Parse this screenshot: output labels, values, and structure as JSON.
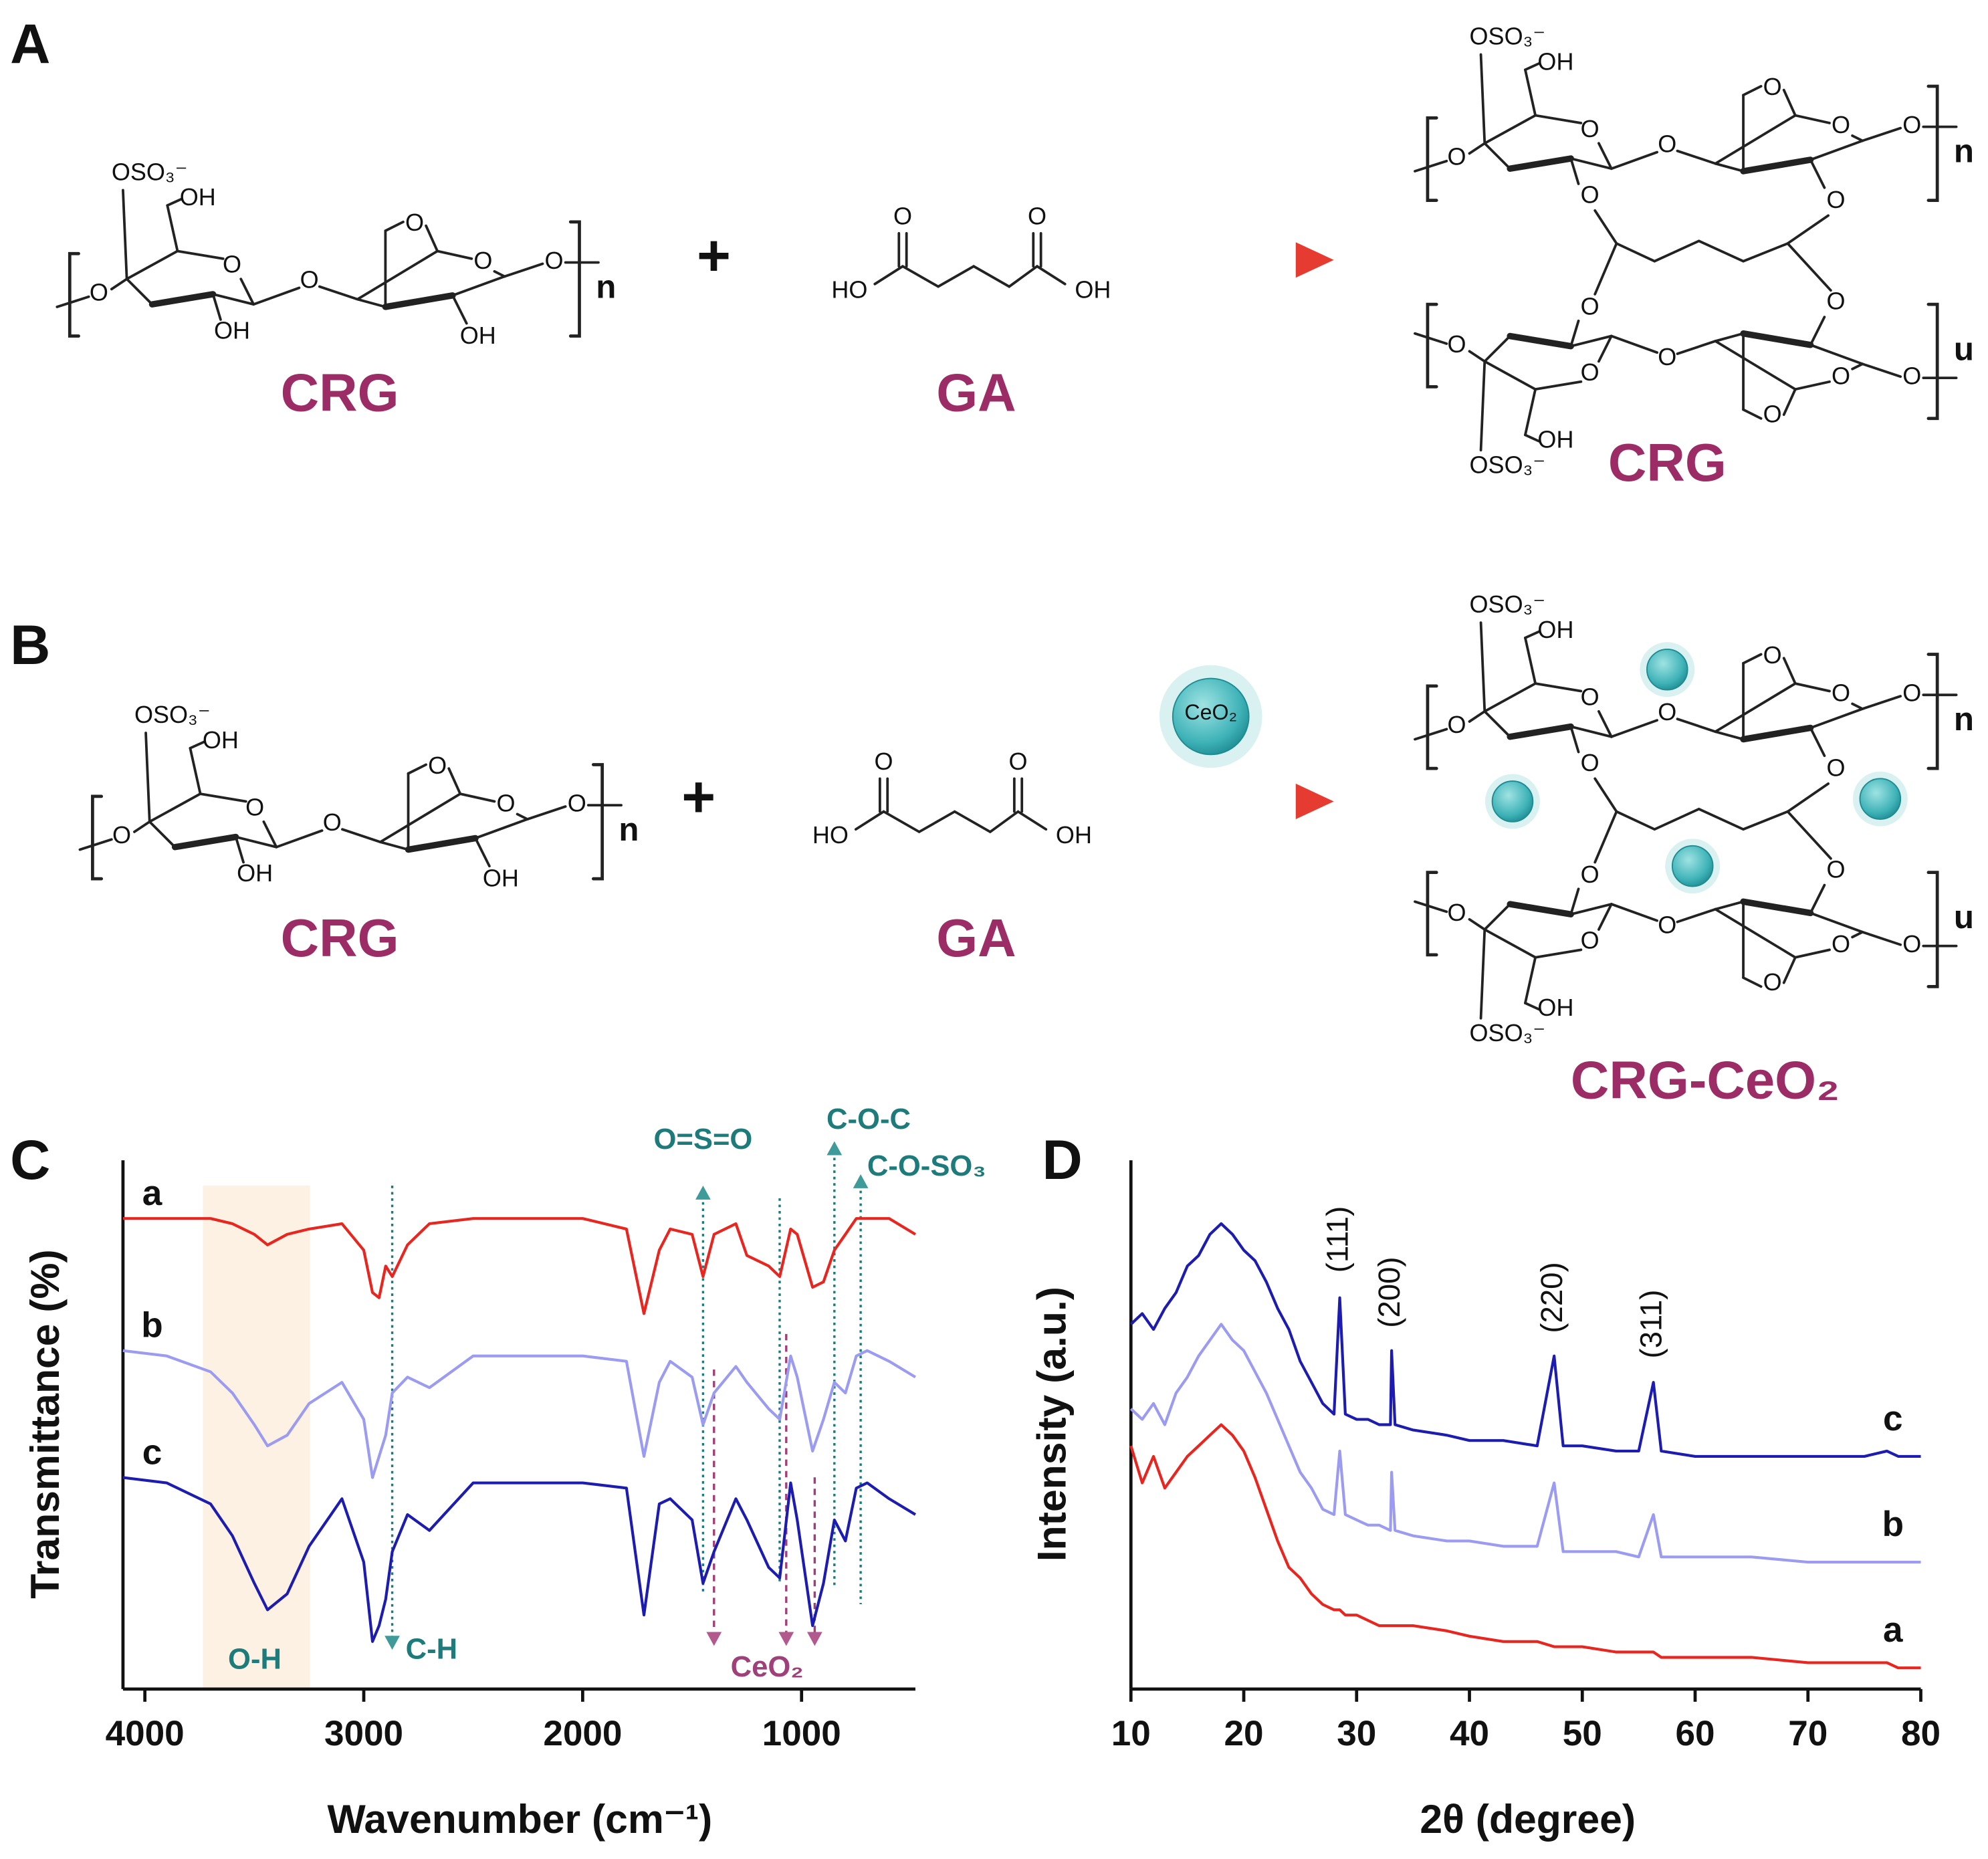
{
  "scheme": {
    "a": {
      "letter": "A",
      "reactant": "CRG",
      "plus": "+",
      "reagent": "GA",
      "product": "CRG"
    },
    "b": {
      "letter": "B",
      "reactant": "CRG",
      "plus": "+",
      "reagent": "GA",
      "catalyst": "CeO₂",
      "product": "CRG-CeO₂"
    },
    "structure": {
      "sulfate": "OSO₃⁻",
      "hydroxyl": "OH",
      "oxygen": "O",
      "acid_left": "HO",
      "repeat_top": "n",
      "repeat_bottom": "u"
    }
  },
  "chart_data": [
    {
      "type": "line",
      "panel_label": "C",
      "xlabel": "Wavenumber (cm⁻¹)",
      "ylabel": "Transmittance (%)",
      "xlim": [
        4100,
        480
      ],
      "xticks": [
        4000,
        3000,
        2000,
        1000
      ],
      "ylim": [
        0,
        100
      ],
      "shaded_range": [
        3735,
        3245
      ],
      "x": [
        4100,
        3900,
        3700,
        3600,
        3500,
        3440,
        3350,
        3250,
        3100,
        3000,
        2960,
        2930,
        2900,
        2870,
        2800,
        2700,
        2500,
        2000,
        1800,
        1720,
        1650,
        1600,
        1500,
        1450,
        1400,
        1300,
        1250,
        1150,
        1100,
        1050,
        1020,
        950,
        900,
        850,
        800,
        750,
        700,
        600,
        480
      ],
      "series": [
        {
          "name": "a",
          "color": "#e8261f",
          "values": [
            89,
            89,
            89,
            88,
            86,
            84,
            86,
            87,
            88,
            83,
            75,
            74,
            80,
            78,
            84,
            88,
            89,
            89,
            87,
            71,
            83,
            87,
            86,
            78,
            86,
            88,
            82,
            80,
            78,
            87,
            86,
            76,
            77,
            83,
            86,
            89,
            89,
            89,
            86
          ]
        },
        {
          "name": "b",
          "color": "#9b9bf2",
          "values": [
            64,
            63,
            60,
            56,
            50,
            46,
            48,
            54,
            58,
            51,
            40,
            44,
            48,
            56,
            59,
            57,
            63,
            63,
            62,
            44,
            58,
            62,
            59,
            50,
            56,
            61,
            58,
            53,
            51,
            63,
            59,
            45,
            51,
            58,
            56,
            63,
            64,
            62,
            59
          ]
        },
        {
          "name": "c",
          "color": "#1c1cb0",
          "values": [
            40,
            39,
            35,
            29,
            20,
            15,
            18,
            27,
            36,
            24,
            9,
            12,
            17,
            26,
            33,
            30,
            39,
            39,
            38,
            14,
            35,
            36,
            32,
            20,
            26,
            36,
            32,
            23,
            21,
            39,
            32,
            12,
            20,
            32,
            28,
            38,
            39,
            36,
            33
          ]
        }
      ],
      "annotations": [
        {
          "text": "O=S=O",
          "x": 1450
        },
        {
          "text": "C-O-C",
          "x": 850
        },
        {
          "text": "C-O-SO₃",
          "x": 730
        },
        {
          "text": "C-H",
          "x": 2870
        },
        {
          "text": "O-H",
          "x": 3440
        }
      ],
      "reference_lines": [
        1100
      ],
      "cerium_peaks": {
        "text": "CeO₂",
        "x": [
          1400,
          1070,
          940
        ]
      }
    },
    {
      "type": "line",
      "panel_label": "D",
      "xlabel": "2θ (degree)",
      "ylabel": "Intensity (a.u.)",
      "xlim": [
        10,
        80
      ],
      "xticks": [
        10,
        20,
        30,
        40,
        50,
        60,
        70,
        80
      ],
      "ylim": [
        0,
        100
      ],
      "x": [
        10,
        11,
        12,
        13,
        14,
        15,
        16,
        17,
        18,
        19,
        20,
        21,
        22,
        23,
        24,
        25,
        26,
        27,
        28,
        28.5,
        29,
        30,
        31,
        32,
        33,
        33.1,
        33.4,
        35,
        38,
        40,
        43,
        46,
        47.5,
        48.3,
        50,
        53,
        55,
        56.3,
        57,
        60,
        65,
        70,
        75,
        77,
        78,
        80
      ],
      "series": [
        {
          "name": "a",
          "color": "#e8261f",
          "values": [
            46,
            39,
            44,
            38,
            41,
            44,
            46,
            48,
            50,
            48,
            45,
            40,
            34,
            28,
            23,
            21,
            18,
            16,
            15,
            15,
            14,
            14,
            13,
            12,
            12,
            12,
            12,
            12,
            11,
            10,
            9,
            9,
            8,
            8,
            8,
            7,
            7,
            7,
            6,
            6,
            6,
            5,
            5,
            5,
            4,
            4
          ]
        },
        {
          "name": "b",
          "color": "#9b9bf2",
          "values": [
            53,
            51,
            54,
            50,
            56,
            59,
            63,
            66,
            69,
            66,
            64,
            60,
            56,
            51,
            46,
            41,
            38,
            34,
            33,
            45,
            33,
            32,
            31,
            31,
            30,
            41,
            30,
            29,
            28,
            28,
            27,
            27,
            39,
            26,
            26,
            26,
            25,
            33,
            25,
            25,
            25,
            24,
            24,
            24,
            24,
            24
          ]
        },
        {
          "name": "c",
          "color": "#1c1cb0",
          "values": [
            69,
            71,
            68,
            72,
            75,
            80,
            82,
            86,
            88,
            86,
            83,
            81,
            77,
            72,
            68,
            62,
            58,
            54,
            52,
            74,
            52,
            51,
            51,
            50,
            50,
            64,
            50,
            49,
            48,
            47,
            47,
            46,
            63,
            46,
            46,
            45,
            45,
            58,
            45,
            44,
            44,
            44,
            44,
            45,
            44,
            44
          ]
        }
      ],
      "peaks": [
        {
          "label": "(111)",
          "x": 28.5
        },
        {
          "label": "(200)",
          "x": 33.1
        },
        {
          "label": "(220)",
          "x": 47.5
        },
        {
          "label": "(311)",
          "x": 56.3
        }
      ]
    }
  ]
}
